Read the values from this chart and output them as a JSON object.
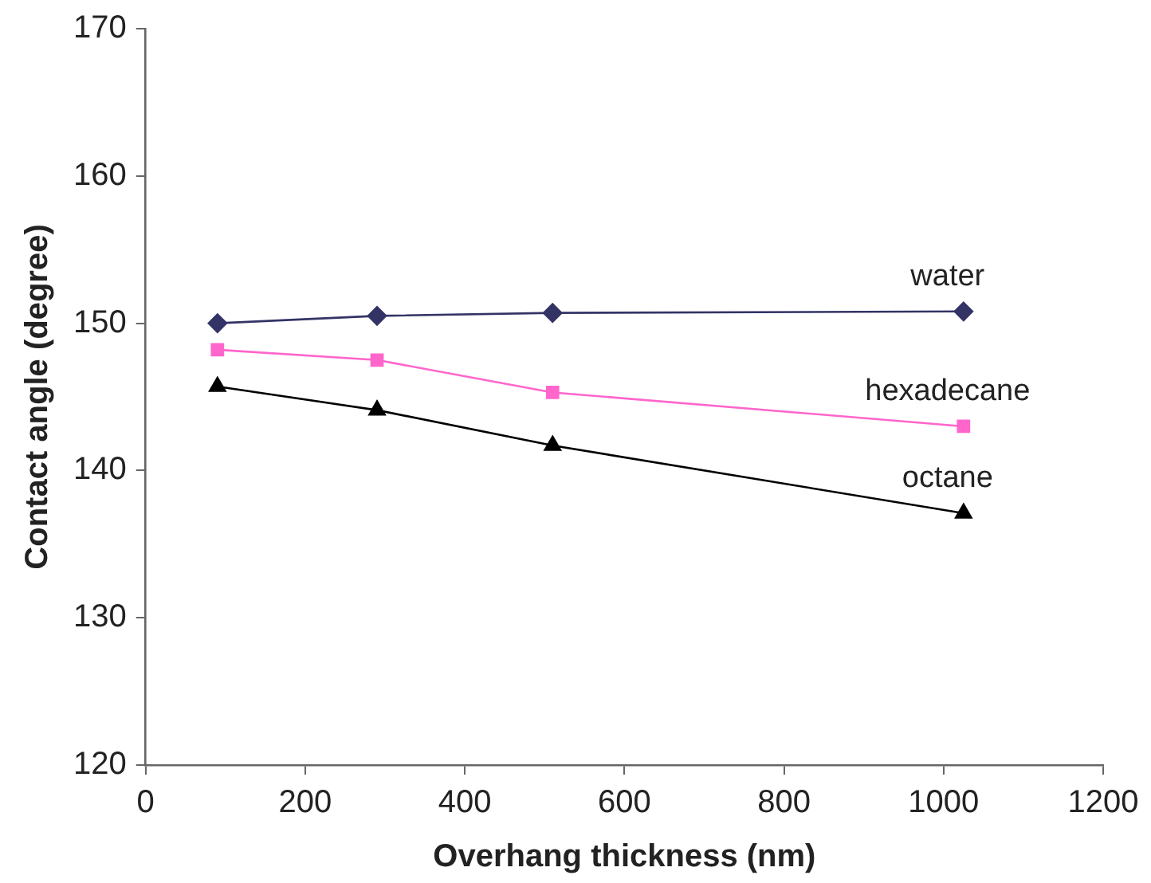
{
  "chart_data": {
    "type": "line",
    "xlabel": "Overhang thickness (nm)",
    "ylabel": "Contact angle (degree)",
    "x": [
      90,
      290,
      510,
      1025
    ],
    "series": [
      {
        "name": "water",
        "color": "#333366",
        "marker": "diamond",
        "values": [
          150.0,
          150.5,
          150.7,
          150.8
        ]
      },
      {
        "name": "hexadecane",
        "color": "#ff66cc",
        "marker": "square",
        "values": [
          148.2,
          147.5,
          145.3,
          143.0
        ]
      },
      {
        "name": "octane",
        "color": "#000000",
        "marker": "triangle",
        "values": [
          145.7,
          144.1,
          141.7,
          137.1
        ]
      }
    ],
    "xlim": [
      0,
      1200
    ],
    "xticks": [
      0,
      200,
      400,
      600,
      800,
      1000,
      1200
    ],
    "ylim": [
      120,
      170
    ],
    "yticks": [
      120,
      130,
      140,
      150,
      160,
      170
    ],
    "grid": false,
    "legend": false
  }
}
